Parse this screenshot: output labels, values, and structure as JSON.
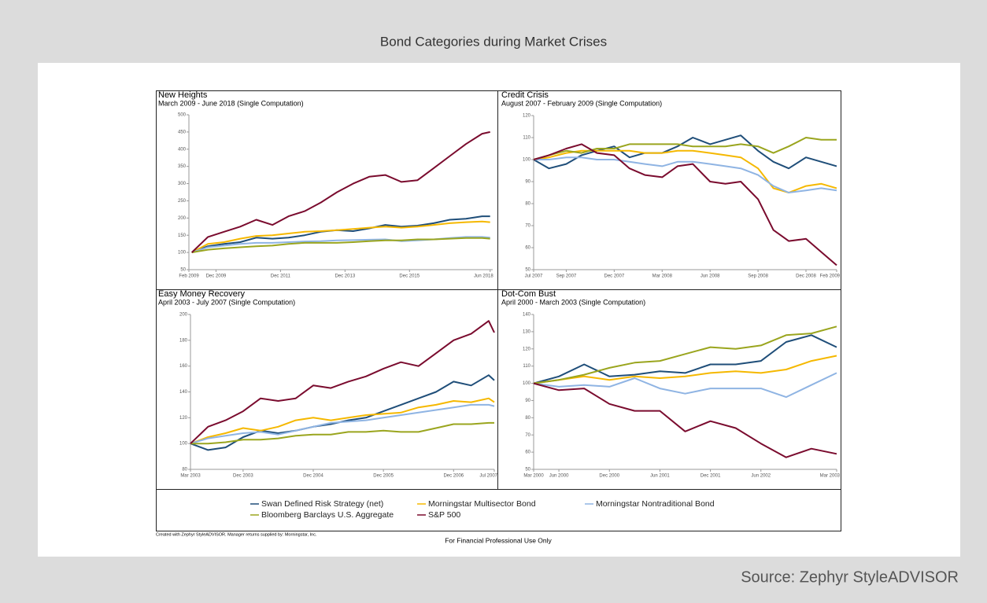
{
  "title": "Bond Categories during Market Crises",
  "credit": "Created with Zephyr StyleADVISOR. Manager returns supplied by: Morningstar, Inc.",
  "footer": "For Financial Professional Use Only",
  "source": "Source: Zephyr StyleADVISOR",
  "chart_data": [
    {
      "type": "line",
      "title": "New Heights",
      "subtitle": "March 2009 - June 2018 (Single Computation)",
      "grid": false,
      "x": [
        2009.17,
        2009.67,
        2010.17,
        2010.67,
        2011.17,
        2011.67,
        2012.17,
        2012.67,
        2013.17,
        2013.67,
        2014.17,
        2014.67,
        2015.17,
        2015.67,
        2016.17,
        2016.67,
        2017.17,
        2017.67,
        2018.17,
        2018.42
      ],
      "xlim": [
        2009.08,
        2018.5
      ],
      "xticks": [
        {
          "value": 2009.08,
          "label": "Feb 2009"
        },
        {
          "value": 2009.92,
          "label": "Dec 2009"
        },
        {
          "value": 2011.92,
          "label": "Dec 2011"
        },
        {
          "value": 2013.92,
          "label": "Dec 2013"
        },
        {
          "value": 2015.92,
          "label": "Dec 2015"
        },
        {
          "value": 2018.42,
          "label": "Jun 2018"
        }
      ],
      "ylim": [
        50,
        500
      ],
      "yticks": [
        50,
        100,
        150,
        200,
        250,
        300,
        350,
        400,
        450,
        500
      ],
      "series": [
        {
          "name": "Swan Defined Risk Strategy (net)",
          "color": "#1f4e79",
          "values": [
            100,
            118,
            125,
            130,
            143,
            140,
            143,
            150,
            160,
            165,
            162,
            170,
            180,
            175,
            178,
            185,
            195,
            198,
            205,
            205
          ]
        },
        {
          "name": "Morningstar Multisector Bond",
          "color": "#f5b800",
          "values": [
            100,
            125,
            130,
            140,
            148,
            150,
            155,
            160,
            162,
            165,
            168,
            172,
            175,
            172,
            175,
            180,
            185,
            188,
            190,
            188
          ]
        },
        {
          "name": "Morningstar Nontraditional Bond",
          "color": "#8fb4e3",
          "values": [
            100,
            115,
            120,
            125,
            128,
            128,
            130,
            132,
            133,
            135,
            136,
            137,
            138,
            133,
            135,
            138,
            142,
            145,
            145,
            143
          ]
        },
        {
          "name": "Bloomberg Barclays U.S. Aggregate",
          "color": "#9aa51e",
          "values": [
            100,
            108,
            112,
            115,
            118,
            120,
            125,
            128,
            128,
            128,
            130,
            133,
            135,
            135,
            138,
            138,
            140,
            142,
            142,
            140
          ]
        },
        {
          "name": "S&P 500",
          "color": "#7a0b2e",
          "values": [
            100,
            145,
            160,
            175,
            195,
            180,
            205,
            220,
            245,
            275,
            300,
            320,
            325,
            305,
            310,
            345,
            380,
            415,
            445,
            450
          ]
        }
      ]
    },
    {
      "type": "line",
      "title": "Credit Crisis",
      "subtitle": "August 2007 - February 2009 (Single Computation)",
      "grid": false,
      "x": [
        2007.5,
        2007.58,
        2007.67,
        2007.75,
        2007.83,
        2007.92,
        2008.0,
        2008.08,
        2008.17,
        2008.25,
        2008.33,
        2008.42,
        2008.5,
        2008.58,
        2008.67,
        2008.75,
        2008.83,
        2008.92,
        2009.0,
        2009.08
      ],
      "xlim": [
        2007.5,
        2009.08
      ],
      "xticks": [
        {
          "value": 2007.5,
          "label": "Jul 2007"
        },
        {
          "value": 2007.67,
          "label": "Sep 2007"
        },
        {
          "value": 2007.92,
          "label": "Dec 2007"
        },
        {
          "value": 2008.17,
          "label": "Mar 2008"
        },
        {
          "value": 2008.42,
          "label": "Jun 2008"
        },
        {
          "value": 2008.67,
          "label": "Sep 2008"
        },
        {
          "value": 2008.92,
          "label": "Dec 2008"
        },
        {
          "value": 2009.08,
          "label": "Feb 2009"
        }
      ],
      "ylim": [
        50,
        120
      ],
      "yticks": [
        50,
        60,
        70,
        80,
        90,
        100,
        110,
        120
      ],
      "series": [
        {
          "name": "Swan Defined Risk Strategy (net)",
          "color": "#1f4e79",
          "values": [
            100,
            96,
            98,
            102,
            104,
            106,
            101,
            103,
            103,
            106,
            110,
            107,
            109,
            111,
            104,
            99,
            96,
            101,
            99,
            97
          ]
        },
        {
          "name": "Morningstar Multisector Bond",
          "color": "#f5b800",
          "values": [
            100,
            101,
            103,
            104,
            104,
            104,
            104,
            103,
            103,
            104,
            104,
            103,
            102,
            101,
            96,
            87,
            85,
            88,
            89,
            87
          ]
        },
        {
          "name": "Morningstar Nontraditional Bond",
          "color": "#8fb4e3",
          "values": [
            100,
            100,
            101,
            101,
            100,
            100,
            99,
            98,
            97,
            99,
            99,
            98,
            97,
            96,
            93,
            88,
            85,
            86,
            87,
            86
          ]
        },
        {
          "name": "Bloomberg Barclays U.S. Aggregate",
          "color": "#9aa51e",
          "values": [
            100,
            102,
            104,
            103,
            105,
            105,
            107,
            107,
            107,
            107,
            106,
            106,
            106,
            107,
            106,
            103,
            106,
            110,
            109,
            109
          ]
        },
        {
          "name": "S&P 500",
          "color": "#7a0b2e",
          "values": [
            100,
            102,
            105,
            107,
            103,
            102,
            96,
            93,
            92,
            97,
            98,
            90,
            89,
            90,
            82,
            68,
            63,
            64,
            58,
            52
          ]
        }
      ]
    },
    {
      "type": "line",
      "title": "Easy Money Recovery",
      "subtitle": "April 2003 - July 2007 (Single Computation)",
      "grid": false,
      "x": [
        2003.17,
        2003.42,
        2003.67,
        2003.92,
        2004.17,
        2004.42,
        2004.67,
        2004.92,
        2005.17,
        2005.42,
        2005.67,
        2005.92,
        2006.17,
        2006.42,
        2006.67,
        2006.92,
        2007.17,
        2007.42,
        2007.5
      ],
      "xlim": [
        2003.17,
        2007.5
      ],
      "xticks": [
        {
          "value": 2003.17,
          "label": "Mar 2003"
        },
        {
          "value": 2003.92,
          "label": "Dec 2003"
        },
        {
          "value": 2004.92,
          "label": "Dec 2004"
        },
        {
          "value": 2005.92,
          "label": "Dec 2005"
        },
        {
          "value": 2006.92,
          "label": "Dec 2006"
        },
        {
          "value": 2007.5,
          "label": "Jul 2007"
        }
      ],
      "ylim": [
        80,
        200
      ],
      "yticks": [
        80,
        100,
        120,
        140,
        160,
        180,
        200
      ],
      "series": [
        {
          "name": "Swan Defined Risk Strategy (net)",
          "color": "#1f4e79",
          "values": [
            100,
            95,
            97,
            105,
            110,
            108,
            110,
            113,
            115,
            118,
            120,
            125,
            130,
            135,
            140,
            148,
            145,
            153,
            149
          ]
        },
        {
          "name": "Morningstar Multisector Bond",
          "color": "#f5b800",
          "values": [
            100,
            105,
            108,
            112,
            110,
            113,
            118,
            120,
            118,
            120,
            122,
            123,
            124,
            128,
            130,
            133,
            132,
            135,
            132
          ]
        },
        {
          "name": "Morningstar Nontraditional Bond",
          "color": "#8fb4e3",
          "values": [
            100,
            104,
            106,
            108,
            109,
            107,
            110,
            113,
            116,
            117,
            118,
            120,
            122,
            124,
            126,
            128,
            130,
            130,
            129
          ]
        },
        {
          "name": "Bloomberg Barclays U.S. Aggregate",
          "color": "#9aa51e",
          "values": [
            100,
            100,
            101,
            103,
            103,
            104,
            106,
            107,
            107,
            109,
            109,
            110,
            109,
            109,
            112,
            115,
            115,
            116,
            116
          ]
        },
        {
          "name": "S&P 500",
          "color": "#7a0b2e",
          "values": [
            100,
            113,
            118,
            125,
            135,
            133,
            135,
            145,
            143,
            148,
            152,
            158,
            163,
            160,
            170,
            180,
            185,
            195,
            186
          ]
        }
      ]
    },
    {
      "type": "line",
      "title": "Dot-Com Bust",
      "subtitle": "April 2000 - March 2003 (Single Computation)",
      "grid": false,
      "x": [
        2000.17,
        2000.42,
        2000.67,
        2000.92,
        2001.17,
        2001.42,
        2001.67,
        2001.92,
        2002.17,
        2002.42,
        2002.67,
        2002.92,
        2003.17
      ],
      "xlim": [
        2000.17,
        2003.17
      ],
      "xticks": [
        {
          "value": 2000.17,
          "label": "Mar 2000"
        },
        {
          "value": 2000.42,
          "label": "Jun 2000"
        },
        {
          "value": 2000.92,
          "label": "Dec 2000"
        },
        {
          "value": 2001.42,
          "label": "Jun 2001"
        },
        {
          "value": 2001.92,
          "label": "Dec 2001"
        },
        {
          "value": 2002.42,
          "label": "Jun 2002"
        },
        {
          "value": 2003.17,
          "label": "Mar 2003"
        }
      ],
      "ylim": [
        50,
        140
      ],
      "yticks": [
        50,
        60,
        70,
        80,
        90,
        100,
        110,
        120,
        130,
        140
      ],
      "series": [
        {
          "name": "Swan Defined Risk Strategy (net)",
          "color": "#1f4e79",
          "values": [
            100,
            104,
            111,
            104,
            105,
            107,
            106,
            111,
            111,
            113,
            124,
            128,
            121
          ]
        },
        {
          "name": "Morningstar Multisector Bond",
          "color": "#f5b800",
          "values": [
            100,
            102,
            104,
            102,
            104,
            103,
            104,
            106,
            107,
            106,
            108,
            113,
            116
          ]
        },
        {
          "name": "Morningstar Nontraditional Bond",
          "color": "#8fb4e3",
          "values": [
            100,
            98,
            99,
            98,
            103,
            97,
            94,
            97,
            97,
            97,
            92,
            99,
            106
          ]
        },
        {
          "name": "Bloomberg Barclays U.S. Aggregate",
          "color": "#9aa51e",
          "values": [
            100,
            102,
            105,
            109,
            112,
            113,
            117,
            121,
            120,
            122,
            128,
            129,
            133
          ]
        },
        {
          "name": "S&P 500",
          "color": "#7a0b2e",
          "values": [
            100,
            96,
            97,
            88,
            84,
            84,
            72,
            78,
            74,
            65,
            57,
            62,
            59
          ]
        }
      ]
    }
  ]
}
